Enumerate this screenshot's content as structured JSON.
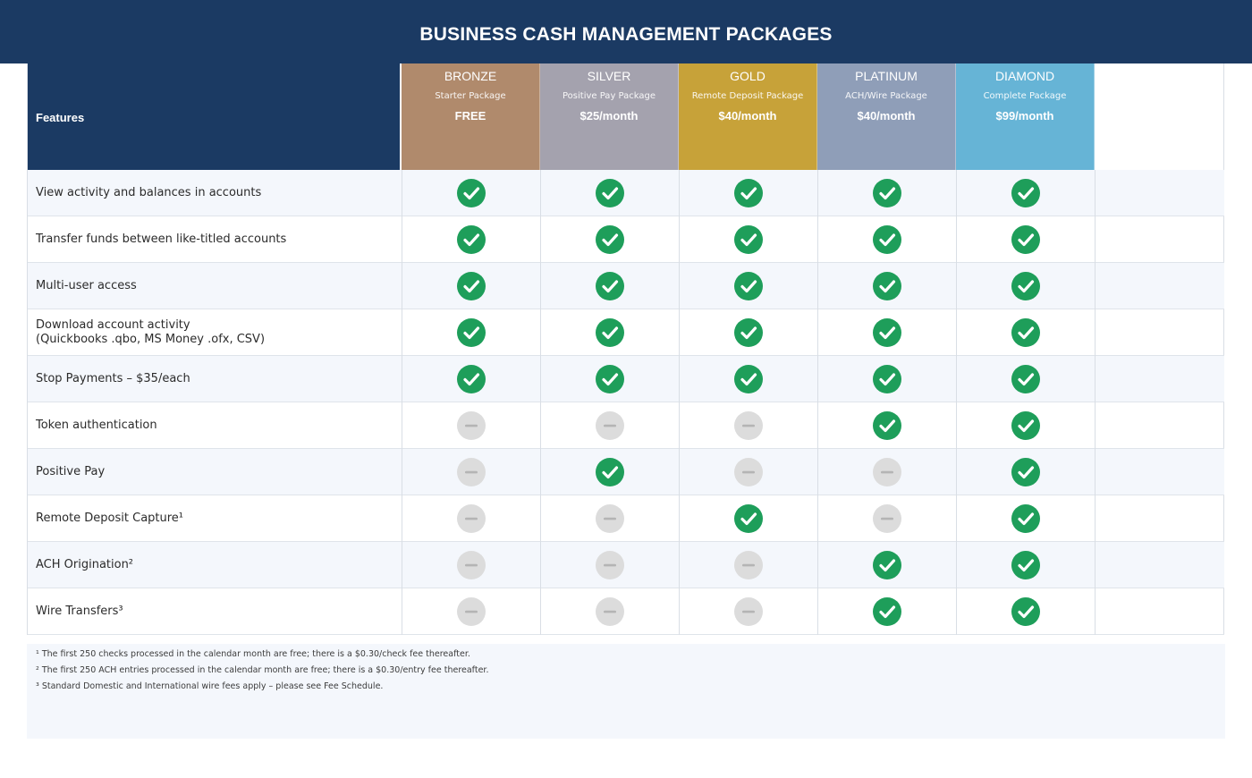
{
  "page": {
    "title": "BUSINESS CASH MANAGEMENT PACKAGES"
  },
  "colors": {
    "navy": "#1b3a63",
    "check": "#1e9e5a",
    "dash": "#dcdcdc",
    "row_alt": "#f4f7fc"
  },
  "table": {
    "features_header": "Features",
    "packages": [
      {
        "name": "BRONZE",
        "subtitle": "Starter Package",
        "price": "FREE",
        "color": "#b08a6c"
      },
      {
        "name": "SILVER",
        "subtitle": "Positive Pay Package",
        "price": "$25/month",
        "color": "#a4a2ae"
      },
      {
        "name": "GOLD",
        "subtitle": "Remote Deposit Package",
        "price": "$40/month",
        "color": "#c7a239"
      },
      {
        "name": "PLATINUM",
        "subtitle": "ACH/Wire Package",
        "price": "$40/month",
        "color": "#8f9eb8"
      },
      {
        "name": "DIAMOND",
        "subtitle": "Complete Package",
        "price": "$99/month",
        "color": "#66b4d6"
      }
    ],
    "rows": [
      {
        "label": "View activity and balances in accounts",
        "included": [
          true,
          true,
          true,
          true,
          true
        ]
      },
      {
        "label": "Transfer funds between like-titled accounts",
        "included": [
          true,
          true,
          true,
          true,
          true
        ]
      },
      {
        "label": "Multi-user access",
        "included": [
          true,
          true,
          true,
          true,
          true
        ]
      },
      {
        "label": "Download account activity\n(Quickbooks .qbo, MS Money .ofx, CSV)",
        "included": [
          true,
          true,
          true,
          true,
          true
        ]
      },
      {
        "label": "Stop Payments – $35/each",
        "included": [
          true,
          true,
          true,
          true,
          true
        ]
      },
      {
        "label": "Token authentication",
        "included": [
          false,
          false,
          false,
          true,
          true
        ]
      },
      {
        "label": "Positive Pay",
        "included": [
          false,
          true,
          false,
          false,
          true
        ]
      },
      {
        "label": "Remote Deposit Capture¹",
        "included": [
          false,
          false,
          true,
          false,
          true
        ]
      },
      {
        "label": "ACH Origination²",
        "included": [
          false,
          false,
          false,
          true,
          true
        ]
      },
      {
        "label": "Wire Transfers³",
        "included": [
          false,
          false,
          false,
          true,
          true
        ]
      }
    ]
  },
  "footnotes": [
    "¹ The first 250 checks processed in the calendar month are free; there is a $0.30/check fee thereafter.",
    "² The first 250 ACH entries processed in the calendar month are free; there is a $0.30/entry fee thereafter.",
    "³ Standard Domestic and International wire fees apply – please see Fee Schedule."
  ]
}
